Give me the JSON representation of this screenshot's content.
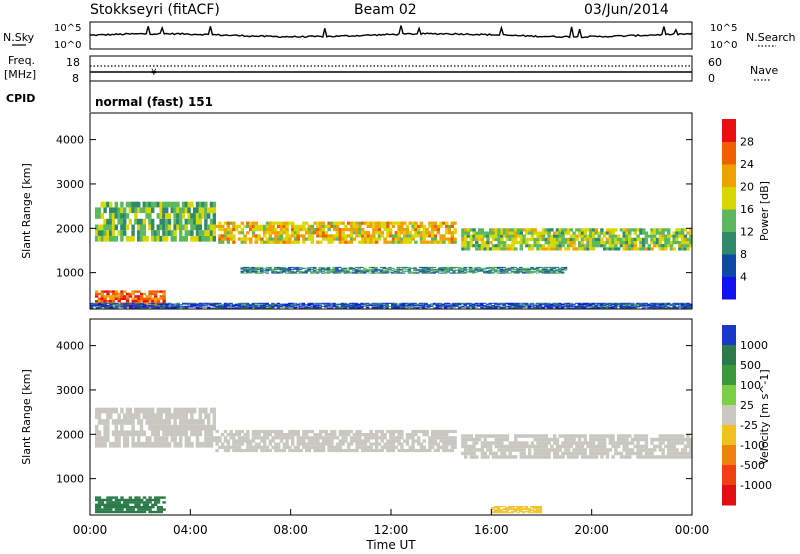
{
  "header": {
    "station": "Stokkseyri (fitACF)",
    "beam": "Beam 02",
    "date": "03/Jun/2014"
  },
  "noise_panel": {
    "left_label": "N.Sky",
    "right_label": "N.Search",
    "left_ticks": [
      "10^5",
      "10^0"
    ],
    "right_ticks": [
      "10^5",
      "10^0"
    ]
  },
  "freq_panel": {
    "left_label": "Freq.",
    "left_unit": "[MHz]",
    "left_ticks": [
      "18",
      "8"
    ],
    "right_label": "Nave",
    "right_ticks": [
      "60",
      "0"
    ]
  },
  "cpid": {
    "label": "CPID",
    "value": "normal (fast) 151"
  },
  "chart_data": [
    {
      "type": "heatmap",
      "name": "power",
      "ylabel": "Slant Range [km]",
      "yticks": [
        1000,
        2000,
        3000,
        4000
      ],
      "ylim": [
        180,
        4600
      ],
      "xlabel": "",
      "colorbar": {
        "label": "Power [dB]",
        "ticks": [
          "4",
          "8",
          "12",
          "16",
          "20",
          "24",
          "28"
        ],
        "colors": [
          "#1010f0",
          "#1048a8",
          "#2e8a6a",
          "#5cb85c",
          "#d8d800",
          "#f0a000",
          "#f06000",
          "#e81010"
        ]
      },
      "bands": [
        {
          "t0": 0.2,
          "t1": 5.0,
          "r0": 1700,
          "r1": 2600,
          "level": 14
        },
        {
          "t0": 5.0,
          "t1": 14.6,
          "r0": 1650,
          "r1": 2150,
          "level": 20
        },
        {
          "t0": 14.8,
          "t1": 24.0,
          "r0": 1500,
          "r1": 2000,
          "level": 16
        },
        {
          "t0": 0.2,
          "t1": 3.0,
          "r0": 220,
          "r1": 600,
          "level": 26
        },
        {
          "t0": 6.0,
          "t1": 19.0,
          "r0": 980,
          "r1": 1130,
          "level": 10
        },
        {
          "t0": 0.0,
          "t1": 24.0,
          "r0": 200,
          "r1": 320,
          "level": 6
        }
      ]
    },
    {
      "type": "heatmap",
      "name": "velocity",
      "ylabel": "Slant Range [km]",
      "yticks": [
        1000,
        2000,
        3000,
        4000
      ],
      "ylim": [
        180,
        4600
      ],
      "xlabel": "Time UT",
      "xticks": [
        "00:00",
        "04:00",
        "08:00",
        "12:00",
        "16:00",
        "20:00",
        "00:00"
      ],
      "colorbar": {
        "label": "Velocity [m s^-1]",
        "ticks": [
          "1000",
          "500",
          "100",
          "25",
          "-25",
          "-100",
          "-500",
          "-1000"
        ],
        "colors": [
          "#1838c8",
          "#2a7a4a",
          "#3a9a3a",
          "#7ad040",
          "#c8c8c0",
          "#f0c020",
          "#f08010",
          "#f04010",
          "#e01010"
        ]
      },
      "bands": [
        {
          "t0": 0.2,
          "t1": 5.0,
          "r0": 1700,
          "r1": 2600,
          "level": 0
        },
        {
          "t0": 5.0,
          "t1": 14.6,
          "r0": 1600,
          "r1": 2100,
          "level": 0
        },
        {
          "t0": 14.8,
          "t1": 24.0,
          "r0": 1450,
          "r1": 2000,
          "level": 0
        },
        {
          "t0": 0.2,
          "t1": 3.0,
          "r0": 220,
          "r1": 600,
          "level": 150
        },
        {
          "t0": 16.0,
          "t1": 18.0,
          "r0": 220,
          "r1": 380,
          "level": -60
        }
      ]
    }
  ]
}
